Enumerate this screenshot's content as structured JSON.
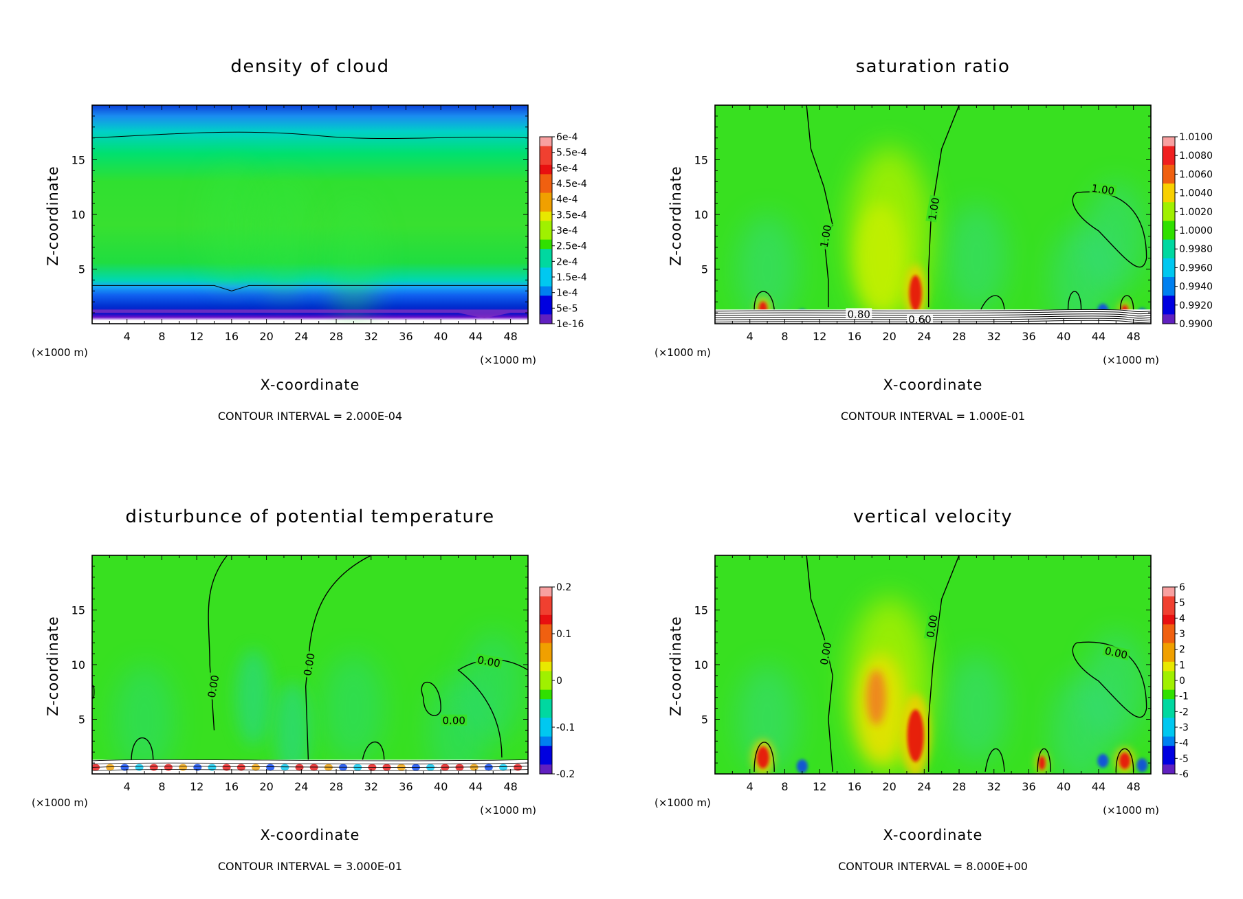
{
  "panels": [
    {
      "title": "density of cloud",
      "xlabel": "X-coordinate",
      "ylabel": "Z-coordinate",
      "xunit": "(×1000 m)",
      "contour_interval": "CONTOUR INTERVAL = 2.000E-04",
      "colorbar_labels": [
        "6e-4",
        "5.5e-4",
        "5e-4",
        "4.5e-4",
        "4e-4",
        "3.5e-4",
        "3e-4",
        "2.5e-4",
        "2e-4",
        "1.5e-4",
        "1e-4",
        "5e-5",
        "1e-16"
      ],
      "contour_labels": []
    },
    {
      "title": "saturation ratio",
      "xlabel": "X-coordinate",
      "ylabel": "Z-coordinate",
      "xunit": "(×1000 m)",
      "contour_interval": "CONTOUR INTERVAL = 1.000E-01",
      "colorbar_labels": [
        "1.0100",
        "1.0080",
        "1.0060",
        "1.0040",
        "1.0020",
        "1.0000",
        "0.9980",
        "0.9960",
        "0.9940",
        "0.9920",
        "0.9900"
      ],
      "contour_labels": [
        "1.00",
        "1.00",
        "1.00",
        "0.80",
        "0.60"
      ]
    },
    {
      "title": "disturbunce of potential temperature",
      "xlabel": "X-coordinate",
      "ylabel": "Z-coordinate",
      "xunit": "(×1000 m)",
      "contour_interval": "CONTOUR INTERVAL = 3.000E-01",
      "colorbar_labels": [
        "0.2",
        "0.1",
        "0",
        "-0.1",
        "-0.2"
      ],
      "contour_labels": [
        "0.00",
        "0.00",
        "0.00",
        "0.00"
      ]
    },
    {
      "title": "vertical velocity",
      "xlabel": "X-coordinate",
      "ylabel": "Z-coordinate",
      "xunit": "(×1000 m)",
      "contour_interval": "CONTOUR INTERVAL = 8.000E+00",
      "colorbar_labels": [
        "6",
        "5",
        "4",
        "3",
        "2",
        "1",
        "0",
        "-1",
        "-2",
        "-3",
        "-4",
        "-5",
        "-6"
      ],
      "contour_labels": [
        "0.00",
        "0.00",
        "0.00"
      ]
    }
  ],
  "chart_data": [
    {
      "type": "heatmap",
      "title": "density of cloud",
      "xlabel": "X-coordinate",
      "ylabel": "Z-coordinate",
      "x_ticks": [
        4,
        8,
        12,
        16,
        20,
        24,
        28,
        32,
        36,
        40,
        44,
        48
      ],
      "y_ticks": [
        5,
        10,
        15
      ],
      "xlim": [
        0,
        50
      ],
      "ylim": [
        0,
        20
      ],
      "colorbar": [
        0.0006,
        0.00055,
        0.0005,
        0.00045,
        0.0004,
        0.00035,
        0.0003,
        0.00025,
        0.0002,
        0.00015,
        0.0001,
        5e-05,
        1e-16
      ]
    },
    {
      "type": "heatmap",
      "title": "saturation ratio",
      "xlabel": "X-coordinate",
      "ylabel": "Z-coordinate",
      "x_ticks": [
        4,
        8,
        12,
        16,
        20,
        24,
        28,
        32,
        36,
        40,
        44,
        48
      ],
      "y_ticks": [
        5,
        10,
        15
      ],
      "xlim": [
        0,
        50
      ],
      "ylim": [
        0,
        20
      ],
      "colorbar": [
        1.01,
        1.008,
        1.006,
        1.004,
        1.002,
        1.0,
        0.998,
        0.996,
        0.994,
        0.992,
        0.99
      ]
    },
    {
      "type": "heatmap",
      "title": "disturbunce of potential temperature",
      "xlabel": "X-coordinate",
      "ylabel": "Z-coordinate",
      "x_ticks": [
        4,
        8,
        12,
        16,
        20,
        24,
        28,
        32,
        36,
        40,
        44,
        48
      ],
      "y_ticks": [
        5,
        10,
        15
      ],
      "xlim": [
        0,
        50
      ],
      "ylim": [
        0,
        20
      ],
      "colorbar": [
        0.2,
        0.1,
        0,
        -0.1,
        -0.2
      ]
    },
    {
      "type": "heatmap",
      "title": "vertical velocity",
      "xlabel": "X-coordinate",
      "ylabel": "Z-coordinate",
      "x_ticks": [
        4,
        8,
        12,
        16,
        20,
        24,
        28,
        32,
        36,
        40,
        44,
        48
      ],
      "y_ticks": [
        5,
        10,
        15
      ],
      "xlim": [
        0,
        50
      ],
      "ylim": [
        0,
        20
      ],
      "colorbar": [
        6,
        5,
        4,
        3,
        2,
        1,
        0,
        -1,
        -2,
        -3,
        -4,
        -5,
        -6
      ]
    }
  ]
}
